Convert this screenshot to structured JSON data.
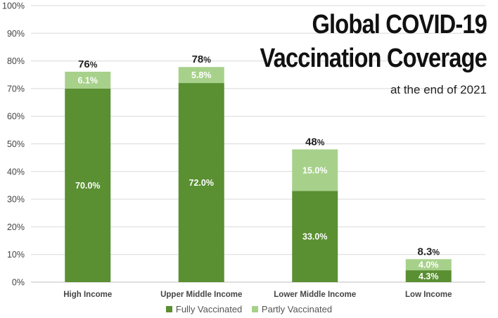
{
  "chart_data": {
    "type": "bar",
    "stacked": true,
    "title_lines": [
      "Global COVID-19",
      "Vaccination Coverage"
    ],
    "subtitle": "at the end of 2021",
    "xlabel": "",
    "ylabel": "",
    "ylim": [
      0,
      100
    ],
    "y_ticks": [
      "0%",
      "10%",
      "20%",
      "30%",
      "40%",
      "50%",
      "60%",
      "70%",
      "80%",
      "90%",
      "100%"
    ],
    "grid": true,
    "legend_position": "bottom",
    "categories": [
      "High Income",
      "Upper Middle Income",
      "Lower Middle Income",
      "Low Income"
    ],
    "series": [
      {
        "name": "Fully Vaccinated",
        "color": "#5a8f32",
        "values": [
          70.0,
          72.0,
          33.0,
          4.3
        ],
        "labels": [
          "70.0%",
          "72.0%",
          "33.0%",
          "4.3%"
        ]
      },
      {
        "name": "Partly Vaccinated",
        "color": "#a7d18a",
        "values": [
          6.1,
          5.8,
          15.0,
          4.0
        ],
        "labels": [
          "6.1%",
          "5.8%",
          "15.0%",
          "4.0%"
        ]
      }
    ],
    "totals": [
      {
        "num": "76",
        "unit": "%"
      },
      {
        "num": "78",
        "unit": "%"
      },
      {
        "num": "48",
        "unit": "%"
      },
      {
        "num": "8.3",
        "unit": "%"
      }
    ]
  }
}
